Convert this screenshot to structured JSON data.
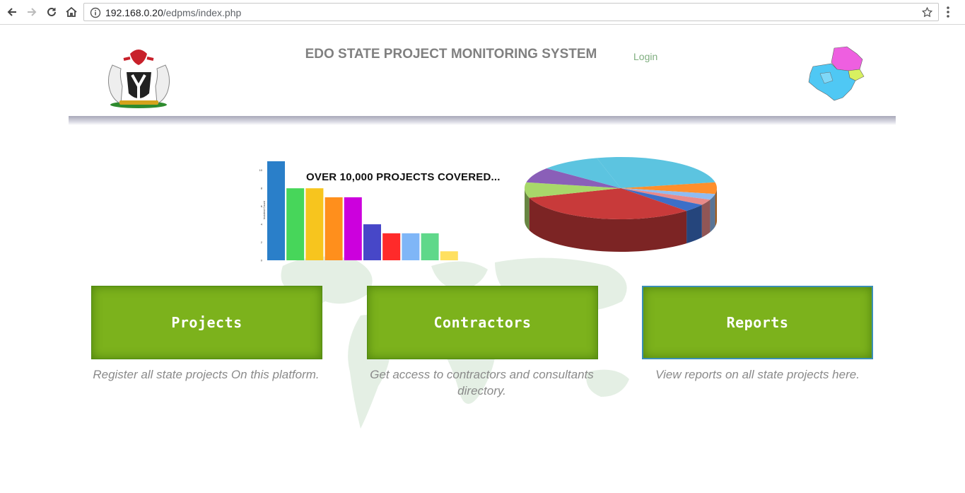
{
  "browser": {
    "url_host": "192.168.0.20",
    "url_path": "/edpms/index.php"
  },
  "header": {
    "title": "EDO STATE PROJECT MONITORING SYSTEM",
    "login_label": "Login"
  },
  "banner": {
    "text": "OVER 10,000 PROJECTS COVERED..."
  },
  "tiles": [
    {
      "label": "Projects",
      "description": "Register all state projects On this platform."
    },
    {
      "label": "Contractors",
      "description": "Get access to contractors and consultants directory."
    },
    {
      "label": "Reports",
      "description": "View reports on all state projects here."
    }
  ],
  "chart_data": [
    {
      "type": "bar",
      "title": "",
      "ylabel": "Incident Count",
      "ylim": [
        0,
        11
      ],
      "yticks": [
        "0",
        "2",
        "4",
        "6",
        "8",
        "10"
      ],
      "values": [
        11,
        8,
        8,
        7,
        7,
        4,
        3,
        3,
        3,
        1
      ],
      "colors": [
        "#2a7fc9",
        "#47d65a",
        "#f7c51e",
        "#ff8f1c",
        "#cc00dd",
        "#4747c8",
        "#ff2a2a",
        "#7fb6f7",
        "#5fd88a",
        "#ffe060"
      ]
    },
    {
      "type": "pie",
      "title": "",
      "values": [
        26,
        6,
        3,
        3,
        4,
        32,
        8,
        8,
        10
      ],
      "colors": [
        "#5cc4e0",
        "#ff8f2c",
        "#8fbcf2",
        "#e88a8a",
        "#3c6fc8",
        "#c83a3a",
        "#a8d86a",
        "#8a5fb8",
        "#5cc4e0"
      ]
    }
  ]
}
